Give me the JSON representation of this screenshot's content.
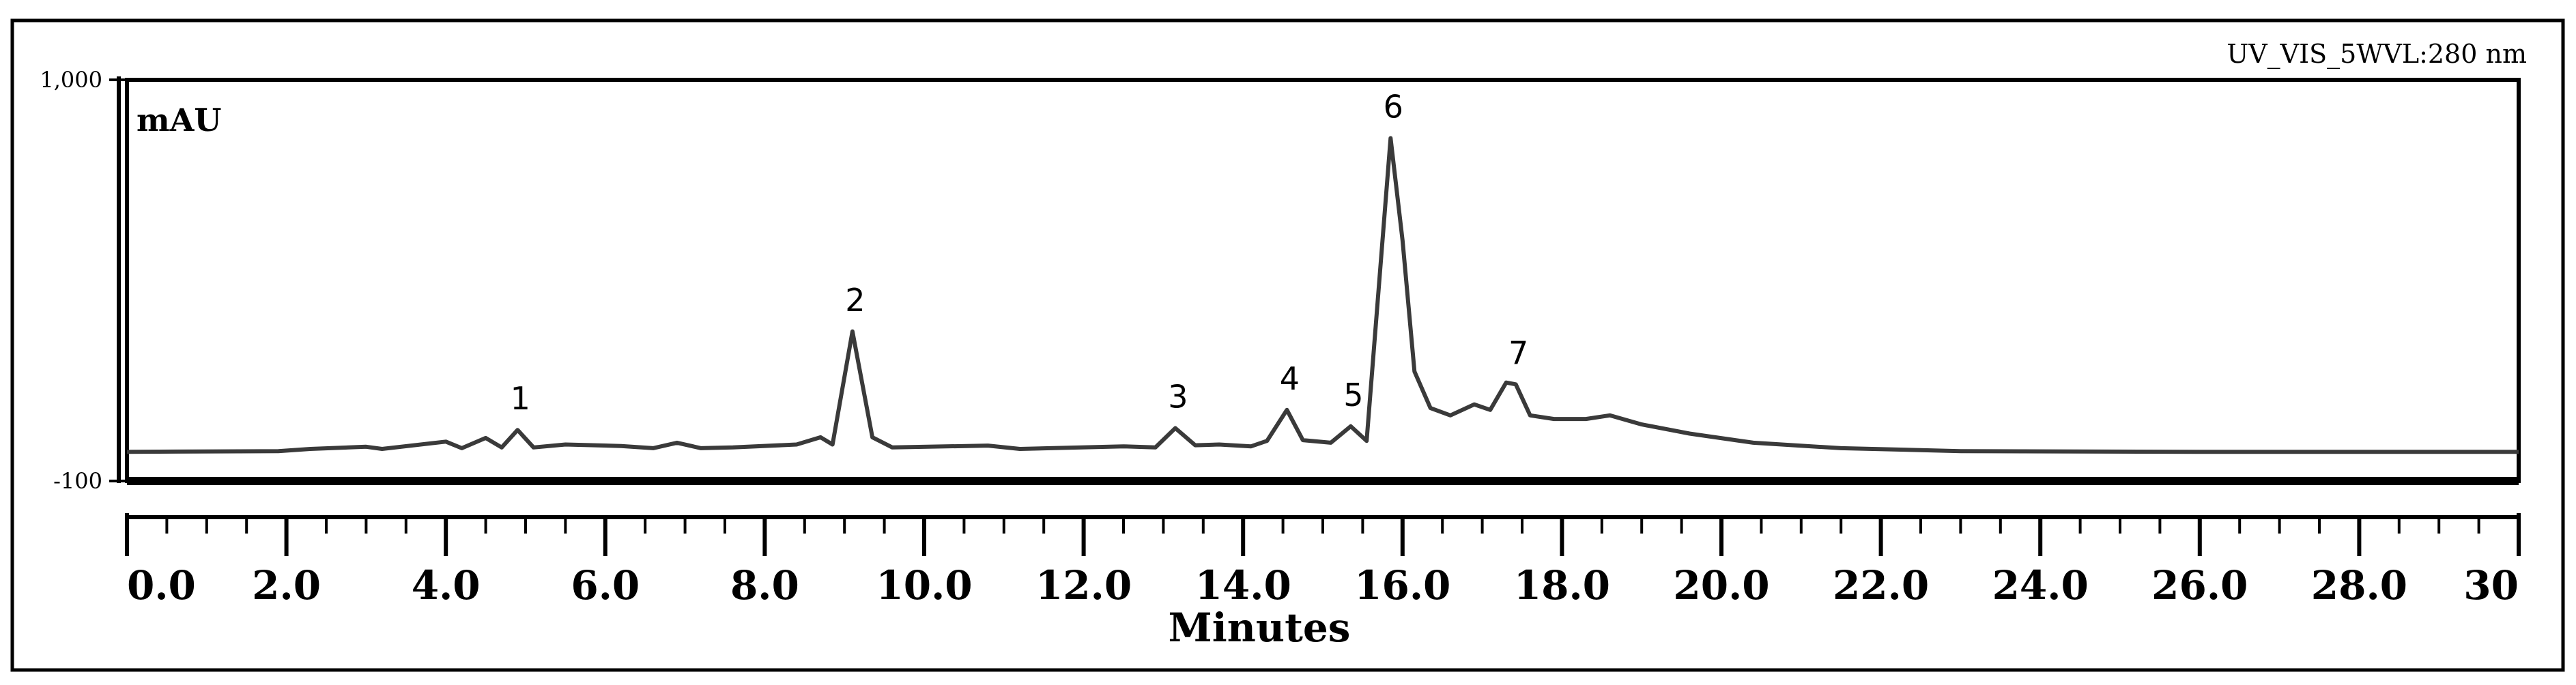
{
  "chart_data": {
    "type": "line",
    "title": "UV_VIS_5WVL:280 nm",
    "xlabel": "Minutes",
    "ylabel": "mAU",
    "xlim": [
      0,
      30
    ],
    "ylim": [
      -100,
      1000
    ],
    "x_ticks": [
      "0.0",
      "2.0",
      "4.0",
      "6.0",
      "8.0",
      "10.0",
      "12.0",
      "14.0",
      "16.0",
      "18.0",
      "20.0",
      "22.0",
      "24.0",
      "26.0",
      "28.0",
      "30"
    ],
    "y_ticks": [
      "1,000",
      "-100"
    ],
    "grid": false,
    "series": [
      {
        "color": "#3a3a3a",
        "points": [
          [
            0,
            -20
          ],
          [
            1.9,
            -18
          ],
          [
            2.3,
            -12
          ],
          [
            3.0,
            -6
          ],
          [
            3.2,
            -12
          ],
          [
            4.0,
            8
          ],
          [
            4.2,
            -10
          ],
          [
            4.5,
            18
          ],
          [
            4.7,
            -8
          ],
          [
            4.9,
            40
          ],
          [
            5.1,
            -8
          ],
          [
            5.5,
            0
          ],
          [
            6.2,
            -4
          ],
          [
            6.6,
            -10
          ],
          [
            6.9,
            5
          ],
          [
            7.2,
            -10
          ],
          [
            7.6,
            -8
          ],
          [
            8.4,
            0
          ],
          [
            8.7,
            20
          ],
          [
            8.85,
            0
          ],
          [
            9.1,
            310
          ],
          [
            9.35,
            20
          ],
          [
            9.6,
            -8
          ],
          [
            10.8,
            -3
          ],
          [
            11.2,
            -12
          ],
          [
            12.5,
            -5
          ],
          [
            12.9,
            -8
          ],
          [
            13.15,
            45
          ],
          [
            13.4,
            -2
          ],
          [
            13.7,
            0
          ],
          [
            14.1,
            -5
          ],
          [
            14.3,
            10
          ],
          [
            14.55,
            95
          ],
          [
            14.75,
            12
          ],
          [
            15.1,
            5
          ],
          [
            15.35,
            50
          ],
          [
            15.55,
            10
          ],
          [
            15.85,
            840
          ],
          [
            16.0,
            560
          ],
          [
            16.15,
            200
          ],
          [
            16.35,
            100
          ],
          [
            16.6,
            80
          ],
          [
            16.9,
            110
          ],
          [
            17.1,
            95
          ],
          [
            17.3,
            170
          ],
          [
            17.42,
            165
          ],
          [
            17.6,
            80
          ],
          [
            17.9,
            70
          ],
          [
            18.3,
            70
          ],
          [
            18.6,
            80
          ],
          [
            19.0,
            55
          ],
          [
            19.6,
            30
          ],
          [
            20.4,
            5
          ],
          [
            21.5,
            -10
          ],
          [
            23.0,
            -18
          ],
          [
            26.0,
            -20
          ],
          [
            30.0,
            -20
          ]
        ]
      }
    ],
    "peaks": [
      {
        "label": "1",
        "x": 4.9,
        "y": 40
      },
      {
        "label": "2",
        "x": 9.1,
        "y": 310
      },
      {
        "label": "3",
        "x": 13.15,
        "y": 45
      },
      {
        "label": "4",
        "x": 14.55,
        "y": 95
      },
      {
        "label": "5",
        "x": 15.35,
        "y": 50
      },
      {
        "label": "6",
        "x": 15.85,
        "y": 840
      },
      {
        "label": "7",
        "x": 17.42,
        "y": 165
      }
    ]
  }
}
